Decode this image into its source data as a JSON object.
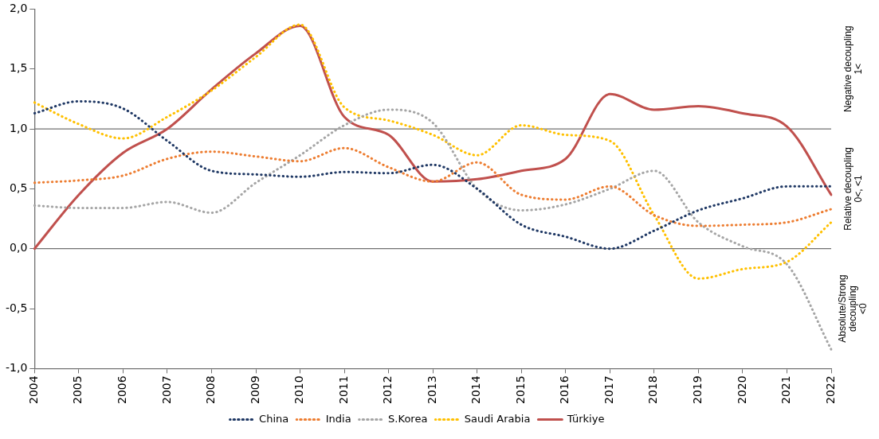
{
  "chart_data": {
    "type": "line",
    "categories": [
      "2004",
      "2005",
      "2006",
      "2007",
      "2008",
      "2009",
      "2010",
      "2011",
      "2012",
      "2013",
      "2014",
      "2015",
      "2016",
      "2017",
      "2018",
      "2019",
      "2020",
      "2021",
      "2022"
    ],
    "series": [
      {
        "name": "China",
        "color": "#1f3864",
        "line_style": "dotted",
        "values": [
          1.13,
          1.23,
          1.17,
          0.9,
          0.65,
          0.62,
          0.6,
          0.64,
          0.63,
          0.7,
          0.5,
          0.2,
          0.1,
          0.0,
          0.15,
          0.32,
          0.42,
          0.52,
          0.52
        ]
      },
      {
        "name": "India",
        "color": "#ed7d31",
        "line_style": "dotted",
        "values": [
          0.55,
          0.57,
          0.61,
          0.75,
          0.81,
          0.77,
          0.73,
          0.84,
          0.68,
          0.56,
          0.72,
          0.45,
          0.41,
          0.52,
          0.28,
          0.19,
          0.2,
          0.22,
          0.33
        ]
      },
      {
        "name": "S.Korea",
        "color": "#a5a5a5",
        "line_style": "dotted",
        "values": [
          0.36,
          0.34,
          0.34,
          0.39,
          0.3,
          0.55,
          0.78,
          1.03,
          1.16,
          1.05,
          0.5,
          0.32,
          0.37,
          0.5,
          0.65,
          0.22,
          0.02,
          -0.13,
          -0.84
        ]
      },
      {
        "name": "Saudi Arabia",
        "color": "#ffc000",
        "line_style": "dotted",
        "values": [
          1.22,
          1.04,
          0.92,
          1.1,
          1.32,
          1.6,
          1.87,
          1.18,
          1.07,
          0.95,
          0.78,
          1.03,
          0.95,
          0.9,
          0.28,
          -0.25,
          -0.17,
          -0.11,
          0.22
        ]
      },
      {
        "name": "Türkiye",
        "color": "#c0504d",
        "line_style": "solid",
        "values": [
          0.0,
          0.45,
          0.8,
          1.0,
          1.33,
          1.63,
          1.86,
          1.1,
          0.95,
          0.56,
          0.58,
          0.65,
          0.75,
          1.29,
          1.16,
          1.19,
          1.13,
          1.02,
          0.45
        ]
      }
    ],
    "ylim": [
      -1,
      2
    ],
    "yticks": [
      {
        "value": -1,
        "label": "-1,0"
      },
      {
        "value": -0.5,
        "label": "-0,5"
      },
      {
        "value": 0,
        "label": "0,0"
      },
      {
        "value": 0.5,
        "label": "0,5"
      },
      {
        "value": 1,
        "label": "1,0"
      },
      {
        "value": 1.5,
        "label": "1,5"
      },
      {
        "value": 2,
        "label": "2,0"
      }
    ],
    "ref_lines": [
      {
        "axis": "y",
        "value": 1,
        "color": "#707070"
      },
      {
        "axis": "y",
        "value": 0,
        "color": "#707070"
      }
    ],
    "annotations": [
      "Negative decoupling\n1<",
      "Relative decoupling\n0<, <1",
      "Absolute/Strong\ndecoupling\n<0"
    ],
    "grid": false,
    "legend": "bottom",
    "marker": "none"
  }
}
